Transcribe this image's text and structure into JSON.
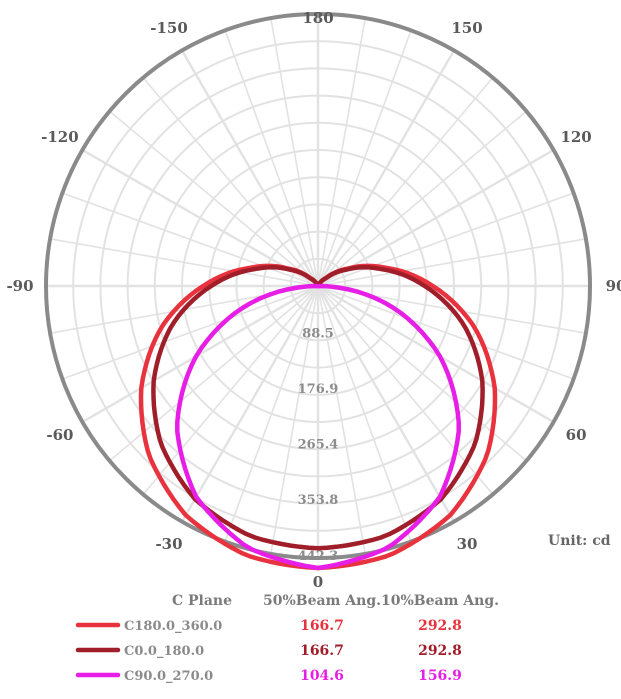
{
  "chart_data": {
    "type": "polar",
    "unit_label": "Unit: cd",
    "angle_labels": [
      {
        "text": "180",
        "deg": 180
      },
      {
        "text": "150",
        "deg": 150
      },
      {
        "text": "-150",
        "deg": -150
      },
      {
        "text": "120",
        "deg": 120
      },
      {
        "text": "-120",
        "deg": -120
      },
      {
        "text": "90",
        "deg": 90
      },
      {
        "text": "-90",
        "deg": -90
      },
      {
        "text": "60",
        "deg": 60
      },
      {
        "text": "-60",
        "deg": -60
      },
      {
        "text": "30",
        "deg": 30
      },
      {
        "text": "-30",
        "deg": -30
      },
      {
        "text": "0",
        "deg": 0
      }
    ],
    "radial_ticks": [
      88.5,
      176.9,
      265.4,
      353.8,
      442.3
    ],
    "radial_max": 442.3,
    "series": [
      {
        "name": "C180.0_360.0",
        "color": "#e8333f",
        "angles": [
          0,
          15,
          30,
          45,
          60,
          75,
          90,
          105,
          120,
          135,
          150,
          165,
          180
        ],
        "values": [
          442.3,
          437,
          415,
          375,
          320,
          255,
          180,
          110,
          55,
          18,
          4,
          1,
          0
        ]
      },
      {
        "name": "C0.0_180.0",
        "color": "#a01e2a",
        "angles": [
          0,
          15,
          30,
          45,
          60,
          75,
          90,
          105,
          120,
          135,
          150,
          165,
          180
        ],
        "values": [
          442.3,
          437,
          415,
          375,
          320,
          255,
          180,
          110,
          55,
          18,
          4,
          1,
          0
        ]
      },
      {
        "name": "C90.0_270.0",
        "color": "#e61ee6",
        "angles": [
          0,
          15,
          30,
          45,
          60,
          75,
          90,
          105,
          120,
          135,
          150,
          165,
          180
        ],
        "values": [
          442.3,
          425,
          382,
          313,
          221,
          115,
          0,
          0,
          0,
          0,
          0,
          0,
          0
        ]
      }
    ],
    "legend": {
      "headers": [
        "C Plane",
        "50%Beam Ang.",
        "10%Beam Ang."
      ],
      "rows": [
        {
          "name": "C180.0_360.0",
          "beam50": "166.7",
          "beam10": "292.8",
          "color": "#e8333f"
        },
        {
          "name": "C0.0_180.0",
          "beam50": "166.7",
          "beam10": "292.8",
          "color": "#a01e2a"
        },
        {
          "name": "C90.0_270.0",
          "beam50": "104.6",
          "beam10": "156.9",
          "color": "#e61ee6"
        }
      ]
    }
  }
}
